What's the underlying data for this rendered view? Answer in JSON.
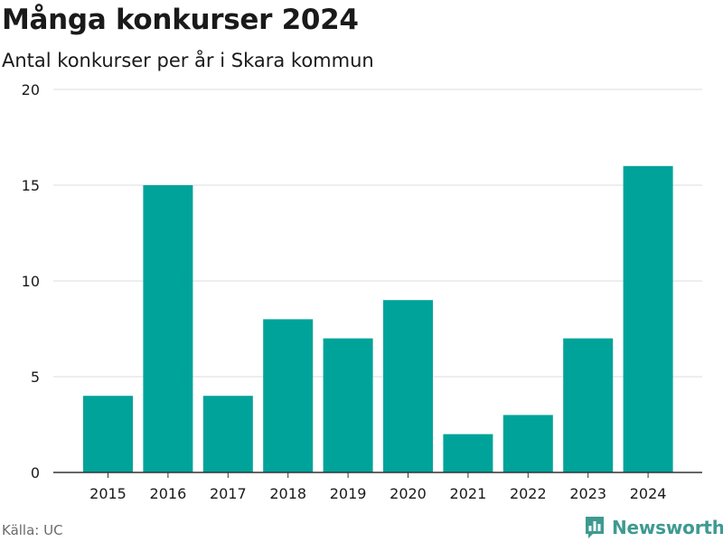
{
  "chart_data": {
    "type": "bar",
    "title": "Många konkurser 2024",
    "subtitle": "Antal konkurser per år i Skara kommun",
    "categories": [
      "2015",
      "2016",
      "2017",
      "2018",
      "2019",
      "2020",
      "2021",
      "2022",
      "2023",
      "2024"
    ],
    "values": [
      4,
      15,
      4,
      8,
      7,
      9,
      2,
      3,
      7,
      16
    ],
    "ylim": [
      0,
      20
    ],
    "yticks": [
      0,
      5,
      10,
      15,
      20
    ],
    "grid": true,
    "bar_color": "#00a39a"
  },
  "footer": {
    "source": "Källa: UC",
    "brand": "Newsworthy",
    "brand_color": "#3e9a90",
    "brand_icon": "bar-chart-icon"
  }
}
